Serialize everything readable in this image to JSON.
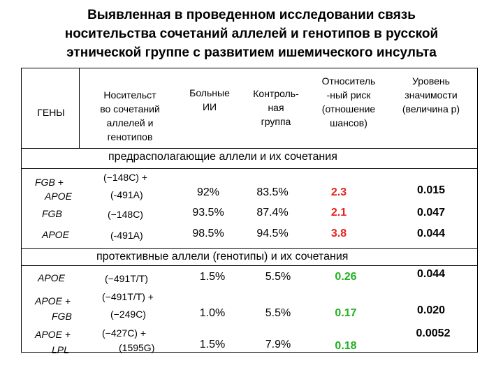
{
  "title": {
    "line1": "Выявленная в проведенном исследовании связь",
    "line2": "носительства сочетаний аллелей и генотипов в русской",
    "line3": "этнической группе с развитием ишемического инсульта"
  },
  "headers": {
    "genes": "ГЕНЫ",
    "carrier": [
      "Носительст",
      "во сочетаний",
      "аллелей и",
      "генотипов"
    ],
    "patients": [
      "Больные",
      "ИИ"
    ],
    "control": [
      "Контроль-",
      "ная",
      "группа"
    ],
    "risk": [
      "Относитель",
      "-ный риск",
      "(отношение",
      "шансов)"
    ],
    "significance": [
      "Уровень",
      "значимости",
      "(величина p)"
    ]
  },
  "sections": {
    "predisposing": "предрасполагающие аллели и их сочетания",
    "protective": "протективные аллели (генотипы) и их сочетания"
  },
  "rows": [
    {
      "gene": [
        "FGB +",
        "APOE"
      ],
      "allele": [
        "(−148C) +",
        "(-491A)"
      ],
      "patients": "92%",
      "control": "83.5%",
      "risk": "2.3",
      "p": "0.015"
    },
    {
      "gene": [
        "FGB"
      ],
      "allele": [
        "(−148C)"
      ],
      "patients": "93.5%",
      "control": "87.4%",
      "risk": "2.1",
      "p": "0.047"
    },
    {
      "gene": [
        "APOE"
      ],
      "allele": [
        "(-491A)"
      ],
      "patients": "98.5%",
      "control": "94.5%",
      "risk": "3.8",
      "p": "0.044"
    },
    {
      "gene": [
        "APOE"
      ],
      "allele": [
        "(−491T/T)"
      ],
      "patients": "1.5%",
      "control": "5.5%",
      "risk": "0.26",
      "p": "0.044"
    },
    {
      "gene": [
        "APOE +",
        "FGB"
      ],
      "allele": [
        "(−491T/T) +",
        "(−249C)"
      ],
      "patients": "1.0%",
      "control": "5.5%",
      "risk": "0.17",
      "p": "0.020"
    },
    {
      "gene": [
        "APOE +",
        "LPL"
      ],
      "allele": [
        "(−427C) +",
        "(1595G)"
      ],
      "patients": "1.5%",
      "control": "7.9%",
      "risk": "0.18",
      "p": "0.0052"
    }
  ],
  "colors": {
    "increased_risk": "#e8211f",
    "decreased_risk": "#22b020"
  }
}
